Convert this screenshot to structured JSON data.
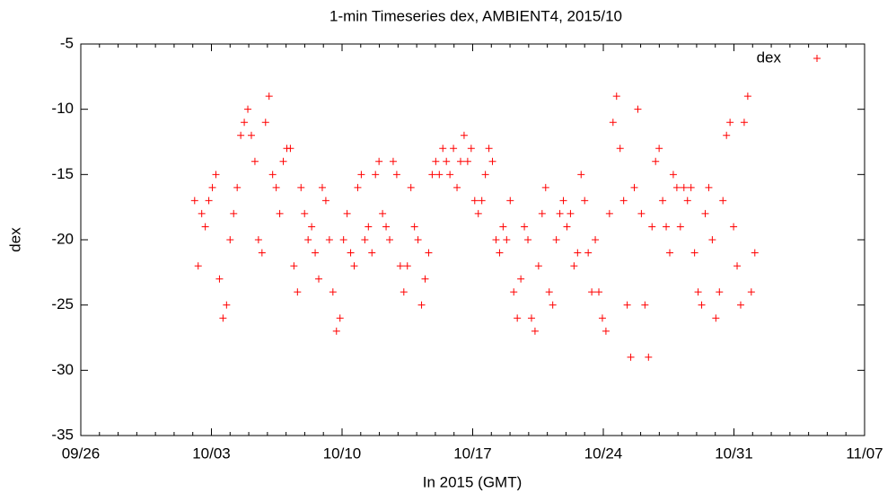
{
  "chart_data": {
    "type": "scatter",
    "title": "1-min Timeseries dex, AMBIENT4, 2015/10",
    "x_label": "In 2015 (GMT)",
    "y_label": "dex",
    "legend_position": "top-right",
    "xlim": [
      269,
      311
    ],
    "xticks": [
      {
        "value": 269,
        "label": "09/26"
      },
      {
        "value": 276,
        "label": "10/03"
      },
      {
        "value": 283,
        "label": "10/10"
      },
      {
        "value": 290,
        "label": "10/17"
      },
      {
        "value": 297,
        "label": "10/24"
      },
      {
        "value": 304,
        "label": "10/31"
      },
      {
        "value": 311,
        "label": "11/07"
      }
    ],
    "ylim": [
      -35,
      -5
    ],
    "yticks": [
      -35,
      -30,
      -25,
      -20,
      -15,
      -10,
      -5
    ],
    "series": [
      {
        "name": "dex",
        "color": "#ff0000",
        "x": [
          275.1,
          275.29,
          275.48,
          275.67,
          275.86,
          276.05,
          276.24,
          276.43,
          276.62,
          276.81,
          277.0,
          277.19,
          277.38,
          277.57,
          277.76,
          277.95,
          278.14,
          278.33,
          278.52,
          278.71,
          278.9,
          279.09,
          279.28,
          279.47,
          279.66,
          279.85,
          280.04,
          280.23,
          280.42,
          280.61,
          280.8,
          280.99,
          281.18,
          281.37,
          281.56,
          281.75,
          281.94,
          282.13,
          282.32,
          282.51,
          282.7,
          282.89,
          283.08,
          283.27,
          283.46,
          283.65,
          283.84,
          284.03,
          284.22,
          284.41,
          284.6,
          284.79,
          284.98,
          285.17,
          285.36,
          285.55,
          285.74,
          285.93,
          286.12,
          286.31,
          286.5,
          286.69,
          286.88,
          287.07,
          287.26,
          287.45,
          287.64,
          287.83,
          288.02,
          288.21,
          288.4,
          288.59,
          288.78,
          288.97,
          289.16,
          289.35,
          289.54,
          289.73,
          289.92,
          290.11,
          290.3,
          290.49,
          290.68,
          290.87,
          291.06,
          291.25,
          291.44,
          291.63,
          291.82,
          292.01,
          292.2,
          292.39,
          292.58,
          292.77,
          292.96,
          293.15,
          293.34,
          293.53,
          293.72,
          293.91,
          294.1,
          294.29,
          294.48,
          294.67,
          294.86,
          295.05,
          295.24,
          295.43,
          295.62,
          295.81,
          296.0,
          296.19,
          296.38,
          296.57,
          296.76,
          296.95,
          297.14,
          297.33,
          297.52,
          297.71,
          297.9,
          298.09,
          298.28,
          298.47,
          298.66,
          298.85,
          299.04,
          299.23,
          299.42,
          299.61,
          299.8,
          299.99,
          300.18,
          300.37,
          300.56,
          300.75,
          300.94,
          301.13,
          301.32,
          301.51,
          301.7,
          301.89,
          302.08,
          302.27,
          302.46,
          302.65,
          302.84,
          303.03,
          303.22,
          303.41,
          303.6,
          303.79,
          303.98,
          304.17,
          304.36,
          304.55,
          304.74,
          304.93,
          305.12
        ],
        "values": [
          -17,
          -22,
          -18,
          -19,
          -17,
          -16,
          -15,
          -23,
          -26,
          -25,
          -20,
          -18,
          -16,
          -12,
          -11,
          -10,
          -12,
          -14,
          -20,
          -21,
          -11,
          -9,
          -15,
          -16,
          -18,
          -14,
          -13,
          -13,
          -22,
          -24,
          -16,
          -18,
          -20,
          -19,
          -21,
          -23,
          -16,
          -17,
          -20,
          -24,
          -27,
          -26,
          -20,
          -18,
          -21,
          -22,
          -16,
          -15,
          -20,
          -19,
          -21,
          -15,
          -14,
          -18,
          -19,
          -20,
          -14,
          -15,
          -22,
          -24,
          -22,
          -16,
          -19,
          -20,
          -25,
          -23,
          -21,
          -15,
          -14,
          -15,
          -13,
          -14,
          -15,
          -13,
          -16,
          -14,
          -12,
          -14,
          -13,
          -17,
          -18,
          -17,
          -15,
          -13,
          -14,
          -20,
          -21,
          -19,
          -20,
          -17,
          -24,
          -26,
          -23,
          -19,
          -20,
          -26,
          -27,
          -22,
          -18,
          -16,
          -24,
          -25,
          -20,
          -18,
          -17,
          -19,
          -18,
          -22,
          -21,
          -15,
          -17,
          -21,
          -24,
          -20,
          -24,
          -26,
          -27,
          -18,
          -11,
          -9,
          -13,
          -17,
          -25,
          -29,
          -16,
          -10,
          -18,
          -25,
          -29,
          -19,
          -14,
          -13,
          -17,
          -19,
          -21,
          -15,
          -16,
          -19,
          -16,
          -17,
          -16,
          -21,
          -24,
          -25,
          -18,
          -16,
          -20,
          -26,
          -24,
          -17,
          -12,
          -11,
          -19,
          -22,
          -25,
          -11,
          -9,
          -24,
          -21
        ]
      }
    ]
  }
}
